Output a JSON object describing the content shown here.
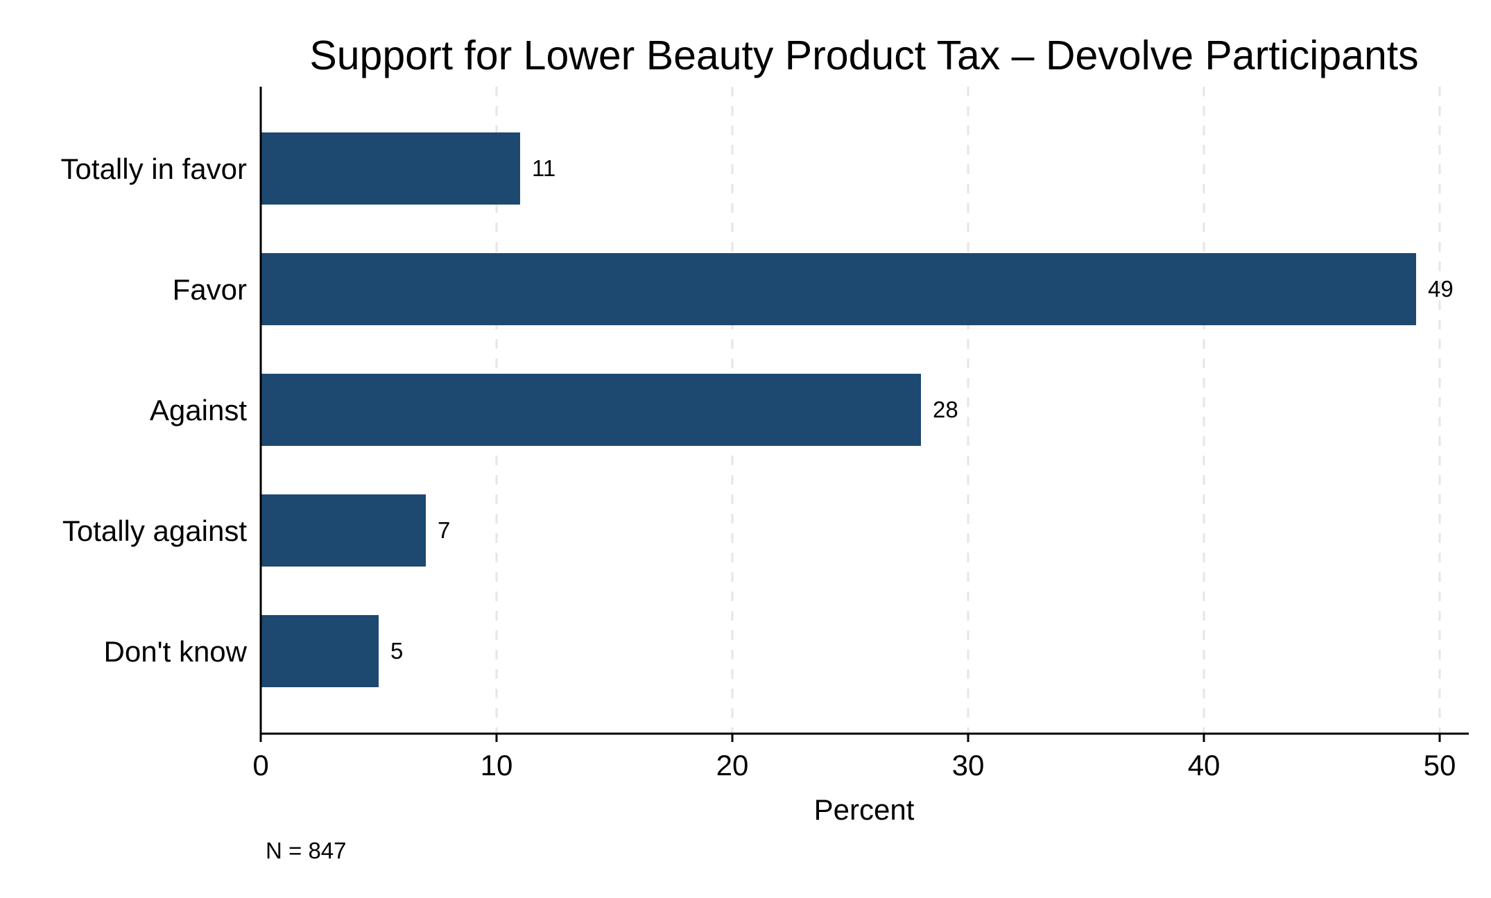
{
  "chart_data": {
    "type": "bar",
    "orientation": "horizontal",
    "title": "Support for Lower Beauty Product Tax – Devolve Participants",
    "categories": [
      "Totally in favor",
      "Favor",
      "Against",
      "Totally against",
      "Don't know"
    ],
    "values": [
      11,
      49,
      28,
      7,
      5
    ],
    "data_labels": [
      "11",
      "49",
      "28",
      "7",
      "5"
    ],
    "xlabel": "Percent",
    "ylabel": "",
    "xlim": [
      0,
      51.3
    ],
    "x_ticks": [
      0,
      10,
      20,
      30,
      40,
      50
    ],
    "x_tick_labels": [
      "0",
      "10",
      "20",
      "30",
      "40",
      "50"
    ],
    "grid": "vertical dashed",
    "legend": "none",
    "note": "N = 847",
    "colors": {
      "bar": "#1d4870",
      "grid": "#e6e6e6",
      "axis": "#000000",
      "background": "#ffffff"
    }
  }
}
